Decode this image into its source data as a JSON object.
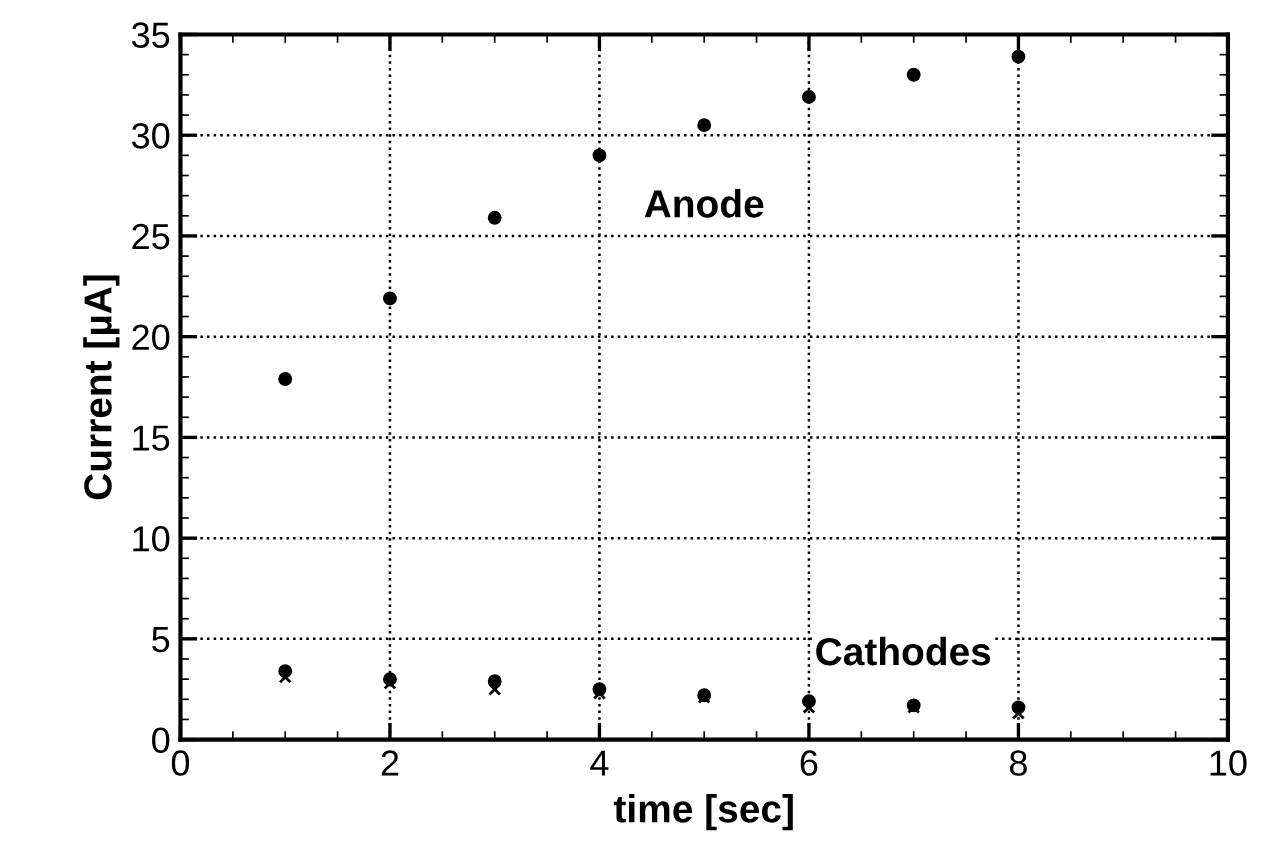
{
  "chart_data": {
    "type": "scatter",
    "xlabel": "time [sec]",
    "ylabel": "Current [µA]",
    "x": [
      1,
      2,
      3,
      4,
      5,
      6,
      7,
      8
    ],
    "series": [
      {
        "color": "#000000",
        "marker": "circle",
        "values": [
          17.9,
          21.9,
          25.9,
          29.0,
          30.5,
          31.9,
          33.0,
          33.9
        ]
      },
      {
        "color": "#000000",
        "marker": "circle",
        "values": [
          3.4,
          3.0,
          2.9,
          2.5,
          2.2,
          1.9,
          1.7,
          1.6
        ]
      },
      {
        "color": "#000000",
        "marker": "cross",
        "values": [
          3.1,
          2.8,
          2.5,
          2.3,
          2.1,
          1.6,
          1.6,
          1.3
        ]
      }
    ],
    "annotations": [
      "Anode",
      "Cathodes"
    ],
    "xlim": [
      0,
      10
    ],
    "xticks": [
      0,
      2,
      4,
      6,
      8,
      10
    ],
    "ylim": [
      0,
      35
    ],
    "yticks": [
      0,
      5,
      10,
      15,
      20,
      25,
      30,
      35
    ],
    "grid": true,
    "legend": false
  }
}
